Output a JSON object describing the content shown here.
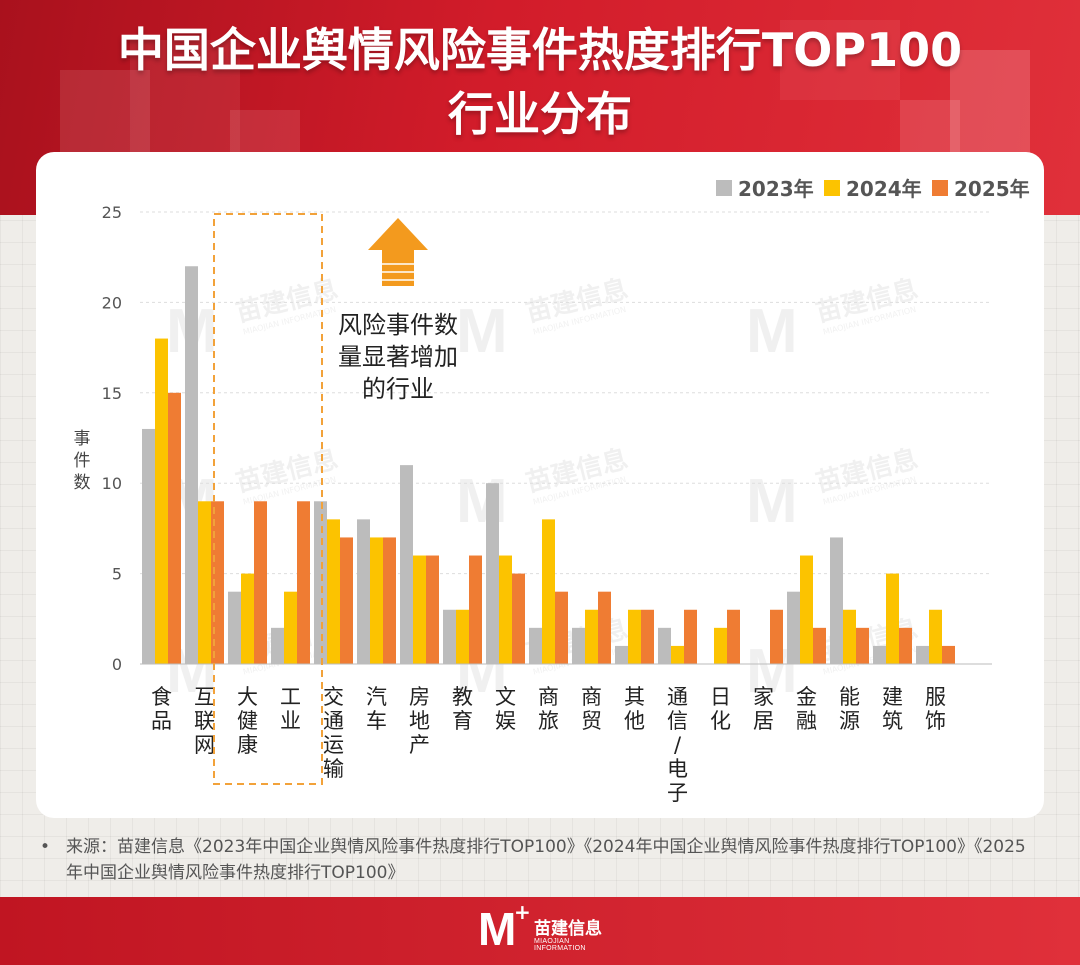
{
  "header": {
    "title_line1": "中国企业舆情风险事件热度排行TOP100",
    "title_line2": "行业分布"
  },
  "colors": {
    "brand_red": "#d21c2a",
    "s2023": "#bcbcbc",
    "s2024": "#fcc300",
    "s2025": "#ef7c33",
    "highlight": "#f2a23a",
    "arrow": "#f39a1e"
  },
  "chart_data": {
    "type": "bar",
    "ylabel": "事件数",
    "ylim": [
      0,
      25
    ],
    "yticks": [
      0,
      5,
      10,
      15,
      20,
      25
    ],
    "grid": true,
    "legend_position": "top-right",
    "categories": [
      "食品",
      "互联网",
      "大健康",
      "工业",
      "交通运输",
      "汽车",
      "房地产",
      "教育",
      "文娱",
      "商旅",
      "商贸",
      "其他",
      "通信/电子",
      "日化",
      "家居",
      "金融",
      "能源",
      "建筑",
      "服饰"
    ],
    "series": [
      {
        "name": "2023年",
        "values": [
          13,
          22,
          4,
          2,
          9,
          8,
          11,
          3,
          10,
          2,
          2,
          1,
          2,
          0,
          0,
          4,
          7,
          1,
          1
        ]
      },
      {
        "name": "2024年",
        "values": [
          18,
          9,
          5,
          4,
          8,
          7,
          6,
          3,
          6,
          8,
          3,
          3,
          1,
          2,
          0,
          6,
          3,
          5,
          3
        ]
      },
      {
        "name": "2025年",
        "values": [
          15,
          9,
          9,
          9,
          7,
          7,
          6,
          6,
          5,
          4,
          4,
          3,
          3,
          3,
          3,
          2,
          2,
          2,
          1
        ]
      }
    ],
    "highlight_categories": [
      "大健康",
      "工业"
    ],
    "annotation": {
      "lines": [
        "风险事件数",
        "量显著增加",
        "的行业"
      ]
    }
  },
  "watermark": {
    "cn": "苗建信息",
    "en": "MIAOJIAN INFORMATION"
  },
  "source": {
    "bullet": "•",
    "text": "来源：苗建信息《2023年中国企业舆情风险事件热度排行TOP100》《2024年中国企业舆情风险事件热度排行TOP100》《2025年中国企业舆情风险事件热度排行TOP100》"
  },
  "footer": {
    "logo_letter": "M",
    "logo_plus": "+",
    "logo_cn": "苗建信息",
    "logo_en": "MIAOJIAN INFORMATION"
  }
}
